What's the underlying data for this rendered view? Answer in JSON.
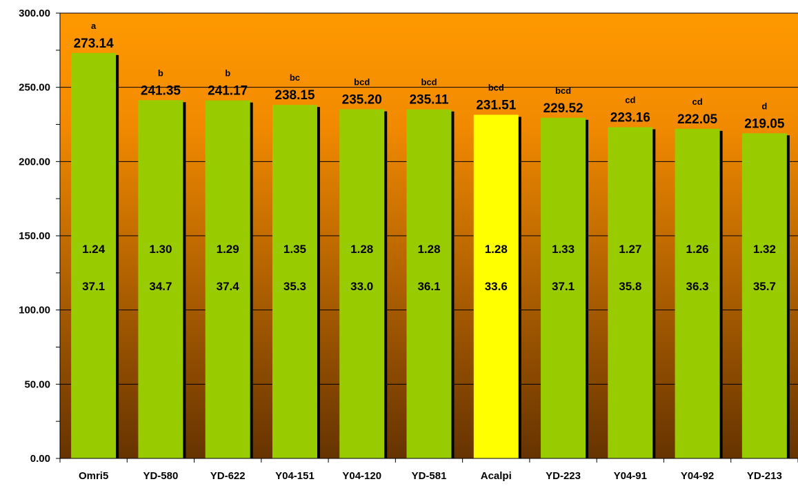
{
  "chart_data": {
    "type": "bar",
    "categories": [
      "Omri5",
      "YD-580",
      "YD-622",
      "Y04-151",
      "Y04-120",
      "YD-581",
      "Acalpi",
      "YD-223",
      "Y04-91",
      "Y04-92",
      "YD-213"
    ],
    "values": [
      273.14,
      241.35,
      241.17,
      238.15,
      235.2,
      235.11,
      231.51,
      229.52,
      223.16,
      222.05,
      219.05
    ],
    "value_labels": [
      "273.14",
      "241.35",
      "241.17",
      "238.15",
      "235.20",
      "235.11",
      "231.51",
      "229.52",
      "223.16",
      "222.05",
      "219.05"
    ],
    "significance_letters": [
      "a",
      "b",
      "b",
      "bc",
      "bcd",
      "bcd",
      "bcd",
      "bcd",
      "cd",
      "cd",
      "d"
    ],
    "inner_row_1": [
      "1.24",
      "1.30",
      "1.29",
      "1.35",
      "1.28",
      "1.28",
      "1.28",
      "1.33",
      "1.27",
      "1.26",
      "1.32"
    ],
    "inner_row_2": [
      "37.1",
      "34.7",
      "37.4",
      "35.3",
      "33.0",
      "36.1",
      "33.6",
      "37.1",
      "35.8",
      "36.3",
      "35.7"
    ],
    "highlight_category": "Acalpi",
    "ylim": [
      0,
      300
    ],
    "yticks": [
      0,
      50,
      100,
      150,
      200,
      250,
      300
    ],
    "ytick_labels": [
      "0.00",
      "50.00",
      "100.00",
      "150.00",
      "200.00",
      "250.00",
      "300.00"
    ],
    "grid": true,
    "colors": {
      "bar": "#99cc00",
      "bar_highlight": "#ffff00",
      "bar_shadow": "#000000",
      "background_top": "#ff9900",
      "background_bottom": "#663300",
      "gridline": "#000000"
    }
  }
}
